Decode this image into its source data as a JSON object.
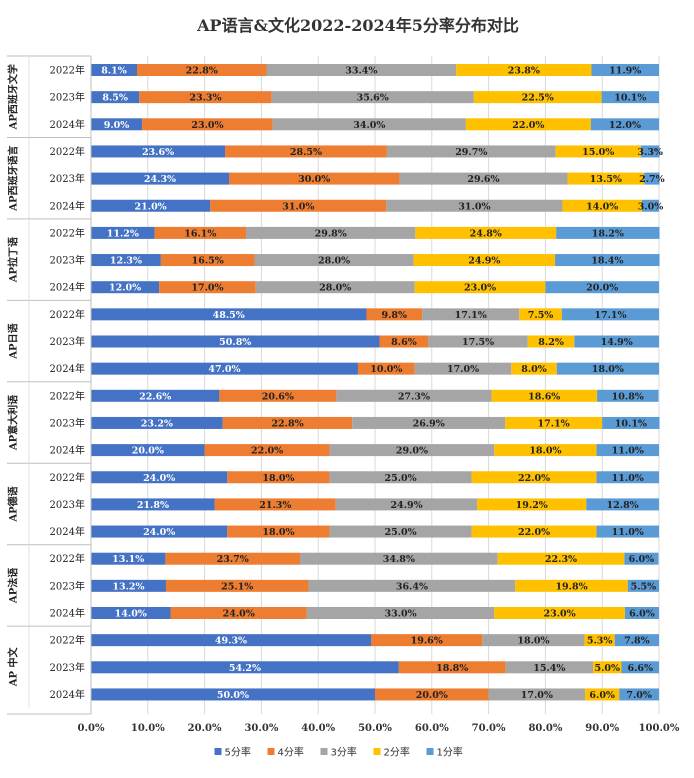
{
  "chart_data": {
    "type": "bar",
    "orientation": "horizontal",
    "stacked": "percent",
    "title": "AP语言&文化2022-2024年5分率分布对比",
    "groups": [
      {
        "name": "AP西班牙文学",
        "years": [
          "2022年",
          "2023年",
          "2024年"
        ]
      },
      {
        "name": "AP西班牙语言",
        "years": [
          "2022年",
          "2023年",
          "2024年"
        ]
      },
      {
        "name": "AP拉丁语",
        "years": [
          "2022年",
          "2023年",
          "2024年"
        ]
      },
      {
        "name": "AP日语",
        "years": [
          "2022年",
          "2023年",
          "2024年"
        ]
      },
      {
        "name": "AP意大利语",
        "years": [
          "2022年",
          "2023年",
          "2024年"
        ]
      },
      {
        "name": "AP德语",
        "years": [
          "2022年",
          "2023年",
          "2024年"
        ]
      },
      {
        "name": "AP法语",
        "years": [
          "2022年",
          "2023年",
          "2024年"
        ]
      },
      {
        "name": "AP 中文",
        "years": [
          "2022年",
          "2023年",
          "2024年"
        ]
      }
    ],
    "series": [
      {
        "name": "5分率",
        "color": "#4472C4",
        "label_color": "#ffffff",
        "values": [
          8.1,
          8.5,
          9.0,
          23.6,
          24.3,
          21.0,
          11.2,
          12.3,
          12.0,
          48.5,
          50.8,
          47.0,
          22.6,
          23.2,
          20.0,
          24.0,
          21.8,
          24.0,
          13.1,
          13.2,
          14.0,
          49.3,
          54.2,
          50.0
        ]
      },
      {
        "name": "4分率",
        "color": "#ED7D31",
        "label_color": "#222222",
        "values": [
          22.8,
          23.3,
          23.0,
          28.5,
          30.0,
          31.0,
          16.1,
          16.5,
          17.0,
          9.8,
          8.6,
          10.0,
          20.6,
          22.8,
          22.0,
          18.0,
          21.3,
          18.0,
          23.7,
          25.1,
          24.0,
          19.6,
          18.8,
          20.0
        ]
      },
      {
        "name": "3分率",
        "color": "#A5A5A5",
        "label_color": "#222222",
        "values": [
          33.4,
          35.6,
          34.0,
          29.7,
          29.6,
          31.0,
          29.8,
          28.0,
          28.0,
          17.1,
          17.5,
          17.0,
          27.3,
          26.9,
          29.0,
          25.0,
          24.9,
          25.0,
          34.8,
          36.4,
          33.0,
          18.0,
          15.4,
          17.0
        ]
      },
      {
        "name": "2分率",
        "color": "#FFC000",
        "label_color": "#222222",
        "values": [
          23.8,
          22.5,
          22.0,
          15.0,
          13.5,
          14.0,
          24.8,
          24.9,
          23.0,
          7.5,
          8.2,
          8.0,
          18.6,
          17.1,
          18.0,
          22.0,
          19.2,
          22.0,
          22.3,
          19.8,
          23.0,
          5.3,
          5.0,
          6.0
        ]
      },
      {
        "name": "1分率",
        "color": "#5B9BD5",
        "label_color": "#222222",
        "values": [
          11.9,
          10.1,
          12.0,
          3.3,
          2.7,
          3.0,
          18.2,
          18.4,
          20.0,
          17.1,
          14.9,
          18.0,
          10.8,
          10.1,
          11.0,
          11.0,
          12.8,
          11.0,
          6.0,
          5.5,
          6.0,
          7.8,
          6.6,
          7.0
        ]
      }
    ],
    "xlim": [
      0,
      100
    ],
    "xticks": [
      "0.0%",
      "10.0%",
      "20.0%",
      "30.0%",
      "40.0%",
      "50.0%",
      "60.0%",
      "70.0%",
      "80.0%",
      "90.0%",
      "100.0%"
    ],
    "grid": "vertical",
    "legend": "bottom"
  }
}
